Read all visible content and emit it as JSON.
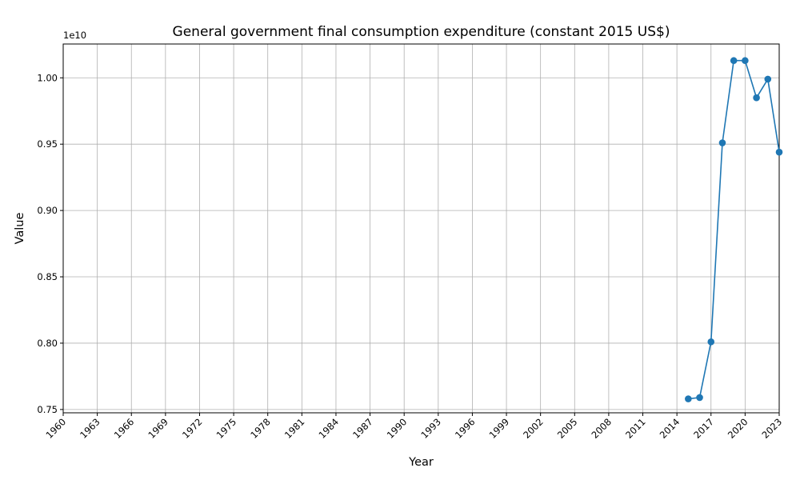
{
  "chart_data": {
    "type": "line",
    "title": "General government final consumption expenditure (constant 2015 US$)",
    "xlabel": "Year",
    "ylabel": "Value",
    "y_offset_label": "1e10",
    "xlim": [
      1960,
      2023
    ],
    "ylim": [
      0.7475,
      1.0255
    ],
    "x_ticks": [
      "1960",
      "1963",
      "1966",
      "1969",
      "1972",
      "1975",
      "1978",
      "1981",
      "1984",
      "1987",
      "1990",
      "1993",
      "1996",
      "1999",
      "2002",
      "2005",
      "2008",
      "2011",
      "2014",
      "2017",
      "2020",
      "2023"
    ],
    "y_ticks": [
      "0.75",
      "0.80",
      "0.85",
      "0.90",
      "0.95",
      "1.00"
    ],
    "grid": true,
    "series": [
      {
        "color": "#1f77b4",
        "marker": "circle",
        "x": [
          2015,
          2016,
          2017,
          2018,
          2019,
          2020,
          2021,
          2022,
          2023
        ],
        "values": [
          0.758,
          0.759,
          0.801,
          0.951,
          1.013,
          1.013,
          0.985,
          0.999,
          0.944
        ]
      }
    ]
  }
}
